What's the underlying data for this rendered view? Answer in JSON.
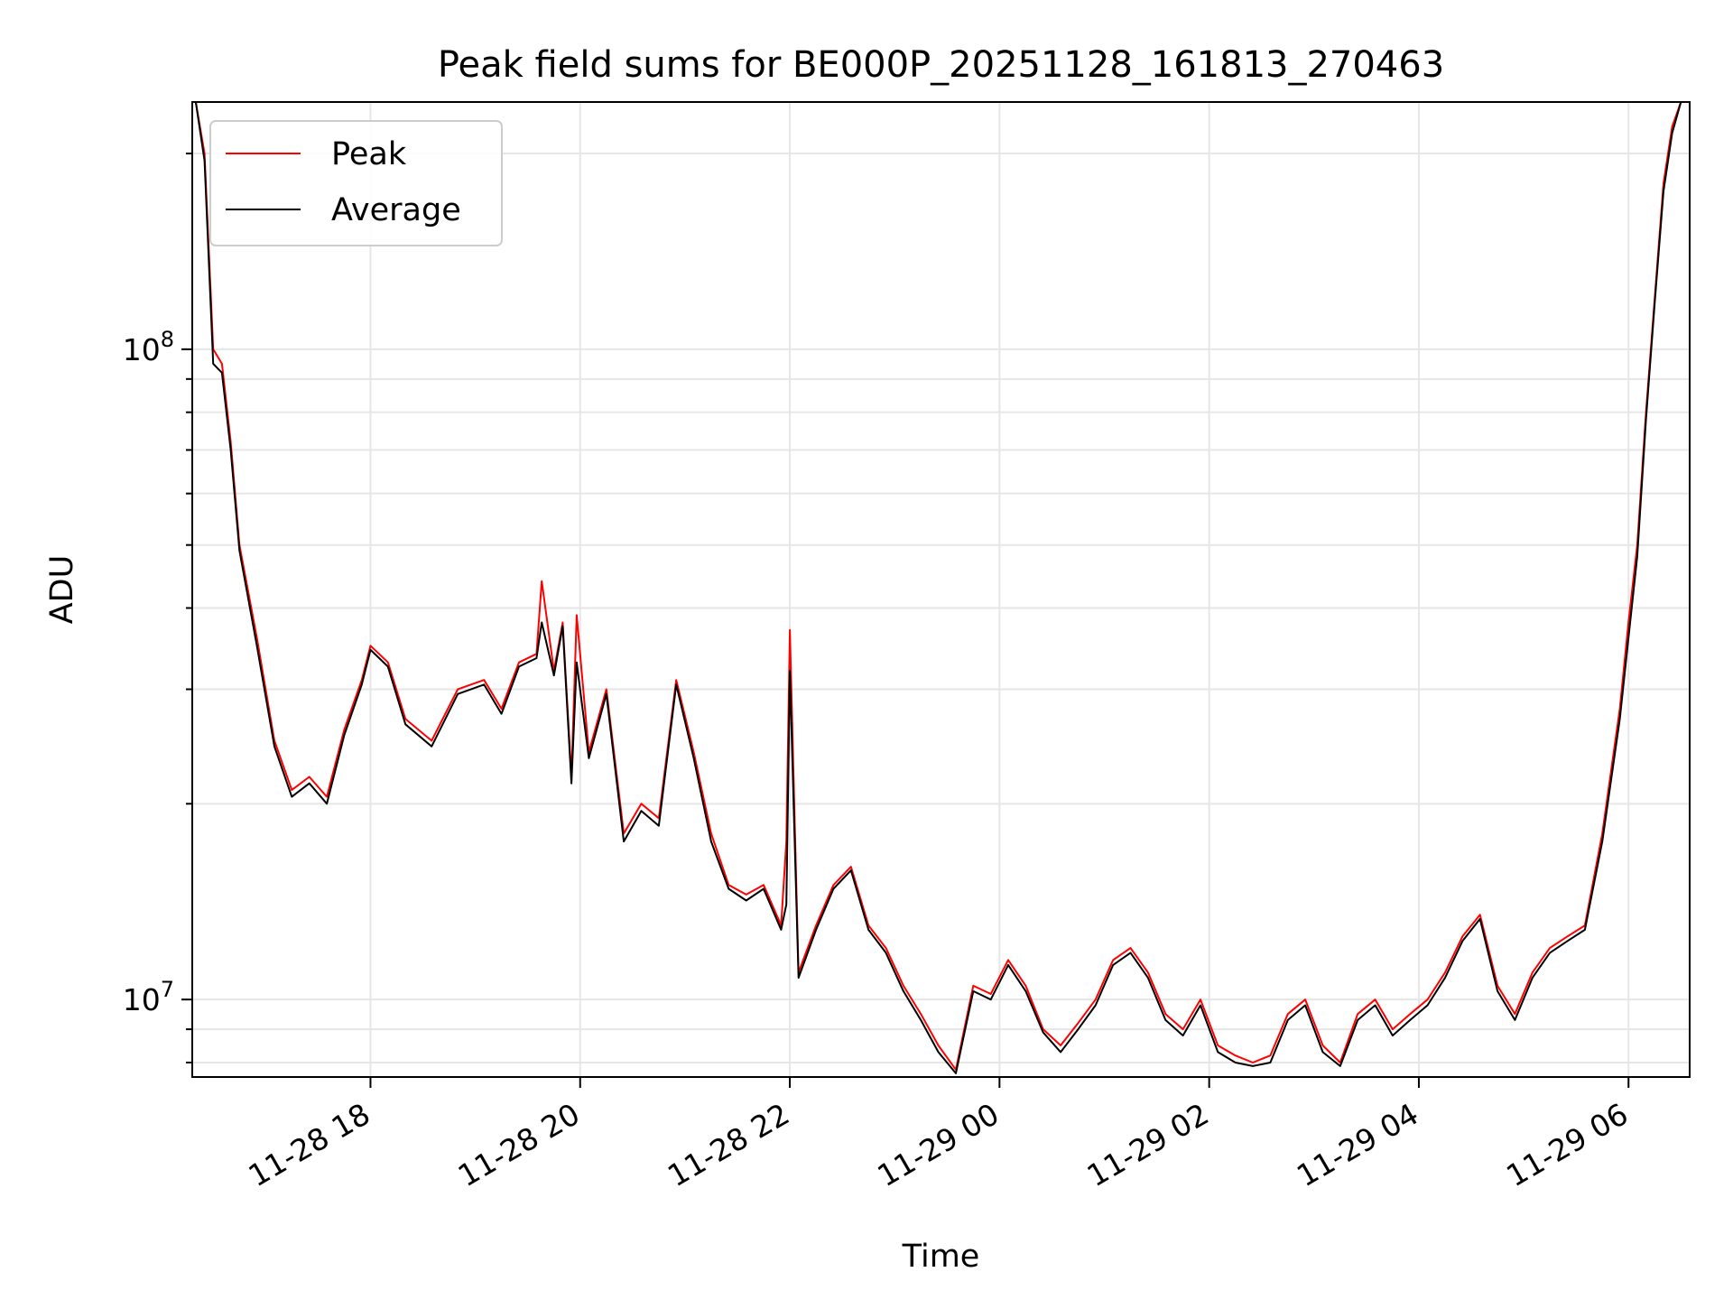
{
  "chart_data": {
    "type": "line",
    "title": "Peak field sums for BE000P_20251128_161813_270463",
    "xlabel": "Time",
    "ylabel": "ADU",
    "yscale": "log",
    "xlim": [
      "2025-11-28 16:18",
      "2025-11-29 06:35"
    ],
    "ylim": [
      7600000,
      240000000
    ],
    "grid": true,
    "legend_position": "top-left",
    "x_ticks": [
      {
        "value": "2025-11-28 18:00",
        "label": "11-28 18"
      },
      {
        "value": "2025-11-28 20:00",
        "label": "11-28 20"
      },
      {
        "value": "2025-11-28 22:00",
        "label": "11-28 22"
      },
      {
        "value": "2025-11-29 00:00",
        "label": "11-29 00"
      },
      {
        "value": "2025-11-29 02:00",
        "label": "11-29 02"
      },
      {
        "value": "2025-11-29 04:00",
        "label": "11-29 04"
      },
      {
        "value": "2025-11-29 06:00",
        "label": "11-29 06"
      }
    ],
    "y_ticks": [
      {
        "value": 10000000,
        "base": "10",
        "exp": "7"
      },
      {
        "value": 100000000,
        "base": "10",
        "exp": "8"
      }
    ],
    "series": [
      {
        "name": "Peak",
        "color": "#ff0000",
        "x": [
          "2025-11-28 16:20",
          "2025-11-28 16:25",
          "2025-11-28 16:30",
          "2025-11-28 16:35",
          "2025-11-28 16:40",
          "2025-11-28 16:45",
          "2025-11-28 16:55",
          "2025-11-28 17:05",
          "2025-11-28 17:15",
          "2025-11-28 17:25",
          "2025-11-28 17:35",
          "2025-11-28 17:45",
          "2025-11-28 17:55",
          "2025-11-28 18:00",
          "2025-11-28 18:10",
          "2025-11-28 18:20",
          "2025-11-28 18:35",
          "2025-11-28 18:50",
          "2025-11-28 19:05",
          "2025-11-28 19:15",
          "2025-11-28 19:25",
          "2025-11-28 19:35",
          "2025-11-28 19:38",
          "2025-11-28 19:45",
          "2025-11-28 19:50",
          "2025-11-28 19:55",
          "2025-11-28 19:58",
          "2025-11-28 20:05",
          "2025-11-28 20:15",
          "2025-11-28 20:25",
          "2025-11-28 20:35",
          "2025-11-28 20:45",
          "2025-11-28 20:55",
          "2025-11-28 21:05",
          "2025-11-28 21:15",
          "2025-11-28 21:25",
          "2025-11-28 21:35",
          "2025-11-28 21:45",
          "2025-11-28 21:55",
          "2025-11-28 21:58",
          "2025-11-28 22:00",
          "2025-11-28 22:05",
          "2025-11-28 22:15",
          "2025-11-28 22:25",
          "2025-11-28 22:35",
          "2025-11-28 22:45",
          "2025-11-28 22:55",
          "2025-11-28 23:05",
          "2025-11-28 23:15",
          "2025-11-28 23:25",
          "2025-11-28 23:35",
          "2025-11-28 23:45",
          "2025-11-28 23:55",
          "2025-11-29 00:05",
          "2025-11-29 00:15",
          "2025-11-29 00:25",
          "2025-11-29 00:35",
          "2025-11-29 00:45",
          "2025-11-29 00:55",
          "2025-11-29 01:05",
          "2025-11-29 01:15",
          "2025-11-29 01:25",
          "2025-11-29 01:35",
          "2025-11-29 01:45",
          "2025-11-29 01:55",
          "2025-11-29 02:05",
          "2025-11-29 02:15",
          "2025-11-29 02:25",
          "2025-11-29 02:35",
          "2025-11-29 02:45",
          "2025-11-29 02:55",
          "2025-11-29 03:05",
          "2025-11-29 03:15",
          "2025-11-29 03:25",
          "2025-11-29 03:35",
          "2025-11-29 03:45",
          "2025-11-29 03:55",
          "2025-11-29 04:05",
          "2025-11-29 04:15",
          "2025-11-29 04:25",
          "2025-11-29 04:35",
          "2025-11-29 04:45",
          "2025-11-29 04:55",
          "2025-11-29 05:05",
          "2025-11-29 05:15",
          "2025-11-29 05:25",
          "2025-11-29 05:35",
          "2025-11-29 05:45",
          "2025-11-29 05:55",
          "2025-11-29 06:00",
          "2025-11-29 06:05",
          "2025-11-29 06:10",
          "2025-11-29 06:15",
          "2025-11-29 06:20",
          "2025-11-29 06:25",
          "2025-11-29 06:30"
        ],
        "y": [
          240000000,
          200000000,
          100000000,
          95000000,
          72000000,
          50000000,
          36000000,
          25000000,
          21000000,
          22000000,
          20500000,
          26000000,
          31000000,
          35000000,
          33000000,
          27000000,
          25000000,
          30000000,
          31000000,
          28000000,
          33000000,
          34000000,
          44000000,
          32000000,
          38000000,
          22000000,
          39000000,
          24000000,
          30000000,
          18000000,
          20000000,
          19000000,
          31000000,
          24000000,
          18000000,
          15000000,
          14500000,
          15000000,
          13000000,
          17500000,
          37000000,
          11000000,
          13000000,
          15000000,
          16000000,
          13000000,
          12000000,
          10500000,
          9500000,
          8500000,
          7800000,
          10500000,
          10200000,
          11500000,
          10500000,
          9000000,
          8500000,
          9200000,
          10000000,
          11500000,
          12000000,
          11000000,
          9500000,
          9000000,
          10000000,
          8500000,
          8200000,
          8000000,
          8200000,
          9500000,
          10000000,
          8500000,
          8000000,
          9500000,
          10000000,
          9000000,
          9500000,
          10000000,
          11000000,
          12500000,
          13500000,
          10500000,
          9500000,
          11000000,
          12000000,
          12500000,
          13000000,
          18000000,
          28000000,
          38000000,
          50000000,
          80000000,
          120000000,
          180000000,
          220000000,
          240000000
        ]
      },
      {
        "name": "Average",
        "color": "#000000",
        "x": [
          "2025-11-28 16:20",
          "2025-11-28 16:25",
          "2025-11-28 16:30",
          "2025-11-28 16:35",
          "2025-11-28 16:40",
          "2025-11-28 16:45",
          "2025-11-28 16:55",
          "2025-11-28 17:05",
          "2025-11-28 17:15",
          "2025-11-28 17:25",
          "2025-11-28 17:35",
          "2025-11-28 17:45",
          "2025-11-28 17:55",
          "2025-11-28 18:00",
          "2025-11-28 18:10",
          "2025-11-28 18:20",
          "2025-11-28 18:35",
          "2025-11-28 18:50",
          "2025-11-28 19:05",
          "2025-11-28 19:15",
          "2025-11-28 19:25",
          "2025-11-28 19:35",
          "2025-11-28 19:38",
          "2025-11-28 19:45",
          "2025-11-28 19:50",
          "2025-11-28 19:55",
          "2025-11-28 19:58",
          "2025-11-28 20:05",
          "2025-11-28 20:15",
          "2025-11-28 20:25",
          "2025-11-28 20:35",
          "2025-11-28 20:45",
          "2025-11-28 20:55",
          "2025-11-28 21:05",
          "2025-11-28 21:15",
          "2025-11-28 21:25",
          "2025-11-28 21:35",
          "2025-11-28 21:45",
          "2025-11-28 21:55",
          "2025-11-28 21:58",
          "2025-11-28 22:00",
          "2025-11-28 22:05",
          "2025-11-28 22:15",
          "2025-11-28 22:25",
          "2025-11-28 22:35",
          "2025-11-28 22:45",
          "2025-11-28 22:55",
          "2025-11-28 23:05",
          "2025-11-28 23:15",
          "2025-11-28 23:25",
          "2025-11-28 23:35",
          "2025-11-28 23:45",
          "2025-11-28 23:55",
          "2025-11-29 00:05",
          "2025-11-29 00:15",
          "2025-11-29 00:25",
          "2025-11-29 00:35",
          "2025-11-29 00:45",
          "2025-11-29 00:55",
          "2025-11-29 01:05",
          "2025-11-29 01:15",
          "2025-11-29 01:25",
          "2025-11-29 01:35",
          "2025-11-29 01:45",
          "2025-11-29 01:55",
          "2025-11-29 02:05",
          "2025-11-29 02:15",
          "2025-11-29 02:25",
          "2025-11-29 02:35",
          "2025-11-29 02:45",
          "2025-11-29 02:55",
          "2025-11-29 03:05",
          "2025-11-29 03:15",
          "2025-11-29 03:25",
          "2025-11-29 03:35",
          "2025-11-29 03:45",
          "2025-11-29 03:55",
          "2025-11-29 04:05",
          "2025-11-29 04:15",
          "2025-11-29 04:25",
          "2025-11-29 04:35",
          "2025-11-29 04:45",
          "2025-11-29 04:55",
          "2025-11-29 05:05",
          "2025-11-29 05:15",
          "2025-11-29 05:25",
          "2025-11-29 05:35",
          "2025-11-29 05:45",
          "2025-11-29 05:55",
          "2025-11-29 06:00",
          "2025-11-29 06:05",
          "2025-11-29 06:10",
          "2025-11-29 06:15",
          "2025-11-29 06:20",
          "2025-11-29 06:25",
          "2025-11-29 06:30"
        ],
        "y": [
          240000000,
          195000000,
          95000000,
          92000000,
          70000000,
          49000000,
          35000000,
          24500000,
          20500000,
          21500000,
          20000000,
          25500000,
          30500000,
          34500000,
          32500000,
          26500000,
          24500000,
          29500000,
          30500000,
          27500000,
          32500000,
          33500000,
          38000000,
          31500000,
          37500000,
          21500000,
          33000000,
          23500000,
          29500000,
          17500000,
          19500000,
          18500000,
          30500000,
          23500000,
          17500000,
          14800000,
          14200000,
          14800000,
          12800000,
          14000000,
          32000000,
          10800000,
          12800000,
          14800000,
          15800000,
          12800000,
          11800000,
          10300000,
          9300000,
          8300000,
          7700000,
          10300000,
          10000000,
          11300000,
          10300000,
          8900000,
          8300000,
          9000000,
          9800000,
          11300000,
          11800000,
          10800000,
          9300000,
          8800000,
          9800000,
          8300000,
          8000000,
          7900000,
          8000000,
          9300000,
          9800000,
          8300000,
          7900000,
          9300000,
          9800000,
          8800000,
          9300000,
          9800000,
          10800000,
          12300000,
          13300000,
          10300000,
          9300000,
          10800000,
          11800000,
          12300000,
          12800000,
          17500000,
          27000000,
          36000000,
          48000000,
          78000000,
          118000000,
          175000000,
          215000000,
          240000000
        ]
      }
    ]
  }
}
